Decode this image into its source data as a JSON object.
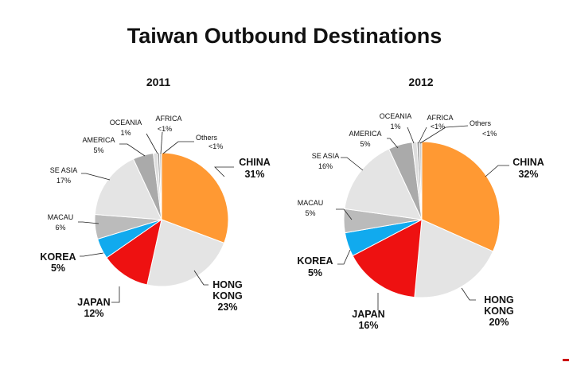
{
  "title": "Taiwan Outbound Destinations",
  "colors": {
    "china": "#FF9933",
    "hongkong": "#E4E4E4",
    "japan": "#EE1111",
    "korea": "#11AAEE",
    "macau": "#BBBBBB",
    "seasia": "#E4E4E4",
    "america": "#AAAAAA",
    "oceania": "#DDDDDD",
    "africa": "#999999",
    "others": "#CCCCCC"
  },
  "chart_data": [
    {
      "type": "pie",
      "title": "2011",
      "slices": [
        {
          "label": "CHINA",
          "value": 31,
          "display": "31%"
        },
        {
          "label": "HONG KONG",
          "value": 23,
          "display": "23%"
        },
        {
          "label": "JAPAN",
          "value": 12,
          "display": "12%"
        },
        {
          "label": "KOREA",
          "value": 5,
          "display": "5%"
        },
        {
          "label": "MACAU",
          "value": 6,
          "display": "6%"
        },
        {
          "label": "SE ASIA",
          "value": 17,
          "display": "17%"
        },
        {
          "label": "AMERICA",
          "value": 5,
          "display": "5%"
        },
        {
          "label": "OCEANIA",
          "value": 1,
          "display": "1%"
        },
        {
          "label": "AFRICA",
          "value": 0.5,
          "display": "<1%"
        },
        {
          "label": "Others",
          "value": 0.5,
          "display": "<1%"
        }
      ]
    },
    {
      "type": "pie",
      "title": "2012",
      "slices": [
        {
          "label": "CHINA",
          "value": 32,
          "display": "32%"
        },
        {
          "label": "HONG KONG",
          "value": 20,
          "display": "20%"
        },
        {
          "label": "JAPAN",
          "value": 16,
          "display": "16%"
        },
        {
          "label": "KOREA",
          "value": 5,
          "display": "5%"
        },
        {
          "label": "MACAU",
          "value": 5,
          "display": "5%"
        },
        {
          "label": "SE ASIA",
          "value": 16,
          "display": "16%"
        },
        {
          "label": "AMERICA",
          "value": 5,
          "display": "5%"
        },
        {
          "label": "OCEANIA",
          "value": 1,
          "display": "1%"
        },
        {
          "label": "AFRICA",
          "value": 0.5,
          "display": "<1%"
        },
        {
          "label": "Others",
          "value": 0.5,
          "display": "<1%"
        }
      ]
    }
  ]
}
